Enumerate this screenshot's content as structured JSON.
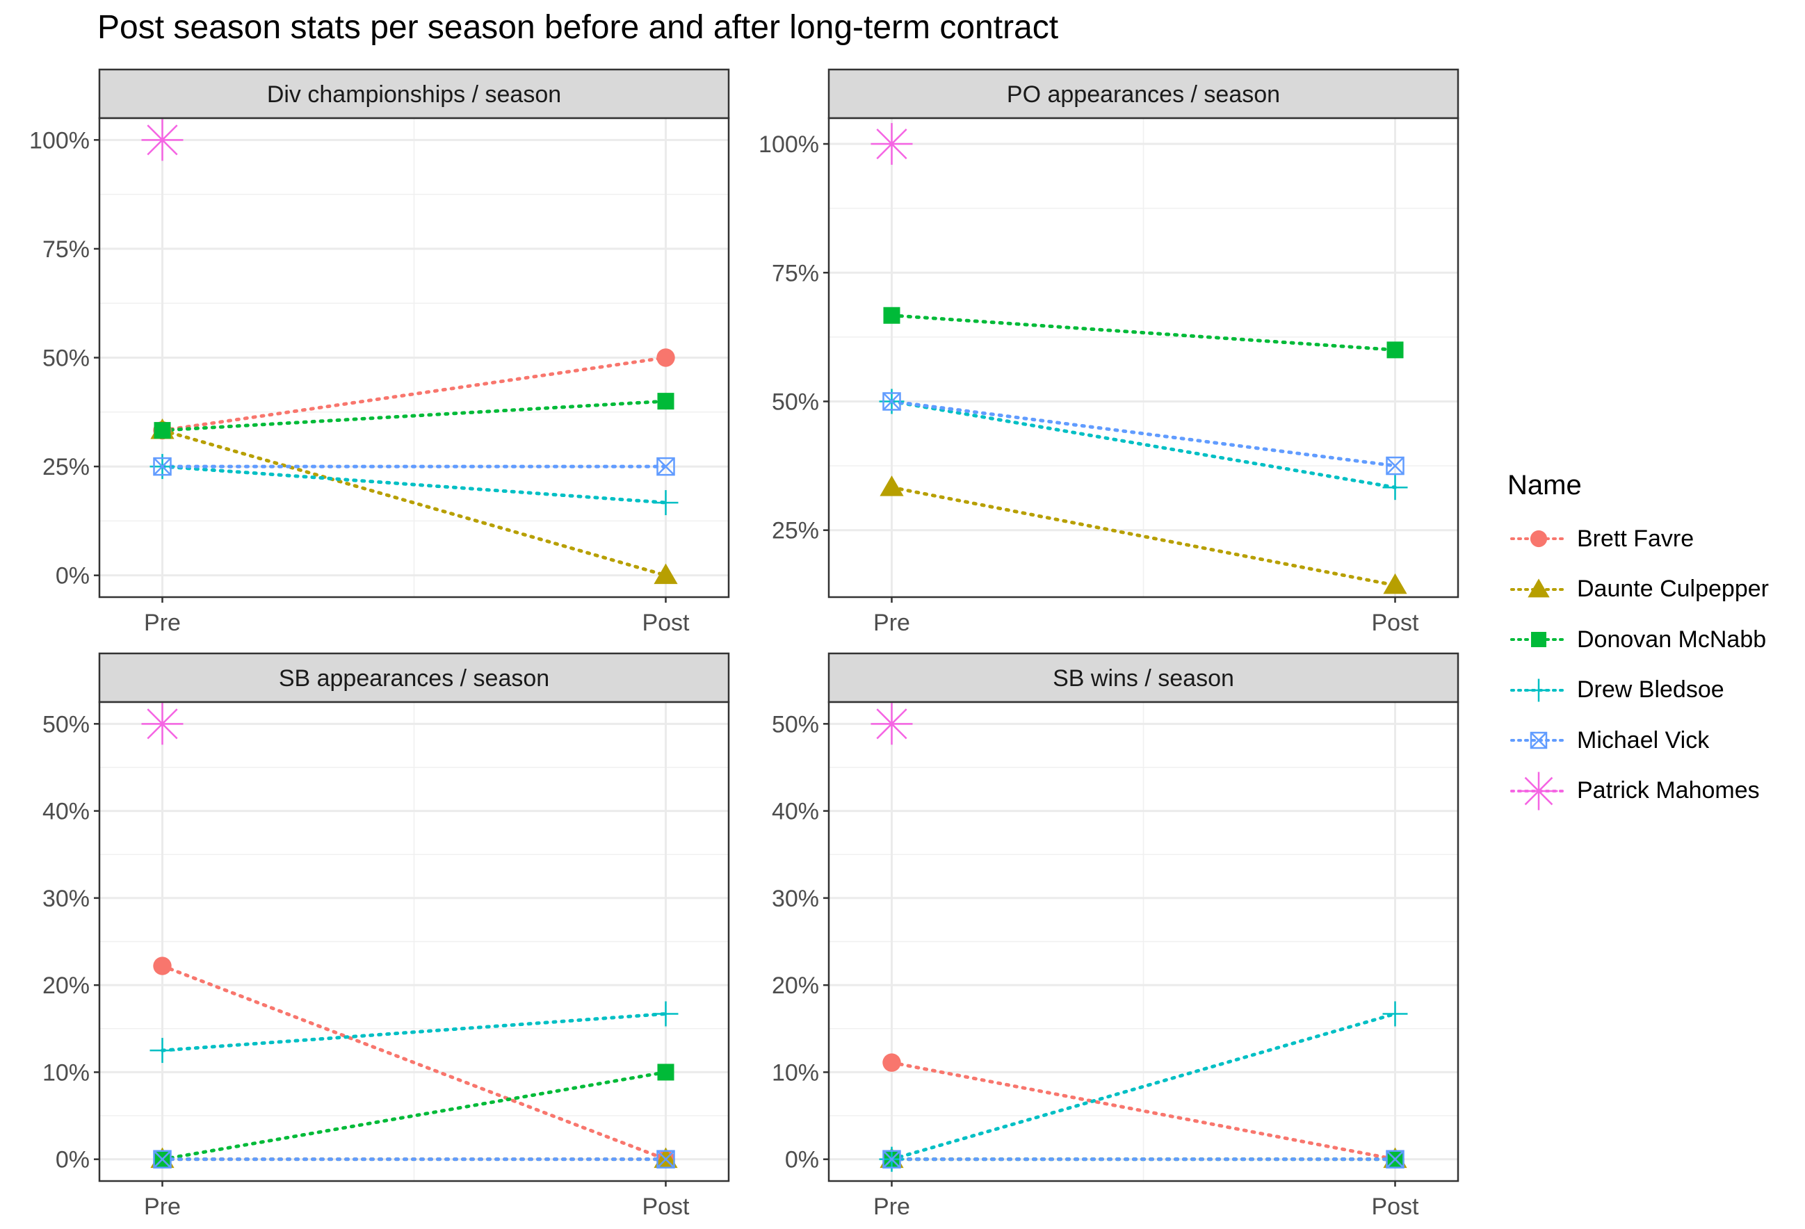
{
  "chart_data": {
    "title": "Post season stats per season before and after long-term contract",
    "type": "line",
    "x_categories": [
      "Pre",
      "Post"
    ],
    "legend": {
      "title": "Name",
      "position": "right",
      "entries": [
        {
          "name": "Brett Favre",
          "color": "#F8766D",
          "shape": "circle"
        },
        {
          "name": "Daunte Culpepper",
          "color": "#B79F00",
          "shape": "triangle"
        },
        {
          "name": "Donovan McNabb",
          "color": "#00BA38",
          "shape": "square"
        },
        {
          "name": "Drew Bledsoe",
          "color": "#00BFC4",
          "shape": "plus"
        },
        {
          "name": "Michael Vick",
          "color": "#619CFF",
          "shape": "square-cross"
        },
        {
          "name": "Patrick Mahomes",
          "color": "#F564E3",
          "shape": "asterisk"
        }
      ]
    },
    "panels": [
      {
        "title": "Div championships / season",
        "ylim": [
          -0.05,
          1.05
        ],
        "yticks": [
          0,
          0.25,
          0.5,
          0.75,
          1.0
        ],
        "ytick_labels": [
          "0%",
          "25%",
          "50%",
          "75%",
          "100%"
        ],
        "series": [
          {
            "name": "Brett Favre",
            "values": [
              0.333,
              0.5
            ]
          },
          {
            "name": "Daunte Culpepper",
            "values": [
              0.333,
              0.0
            ]
          },
          {
            "name": "Donovan McNabb",
            "values": [
              0.333,
              0.4
            ]
          },
          {
            "name": "Drew Bledsoe",
            "values": [
              0.25,
              0.167
            ]
          },
          {
            "name": "Michael Vick",
            "values": [
              0.25,
              0.25
            ]
          },
          {
            "name": "Patrick Mahomes",
            "values": [
              1.0,
              null
            ]
          }
        ]
      },
      {
        "title": "PO appearances / season",
        "ylim": [
          0.12,
          1.05
        ],
        "yticks": [
          0.25,
          0.5,
          0.75,
          1.0
        ],
        "ytick_labels": [
          "25%",
          "50%",
          "75%",
          "100%"
        ],
        "series": [
          {
            "name": "Brett Favre",
            "values": [
              null,
              null
            ]
          },
          {
            "name": "Daunte Culpepper",
            "values": [
              0.333,
              0.143
            ]
          },
          {
            "name": "Donovan McNabb",
            "values": [
              0.667,
              0.6
            ]
          },
          {
            "name": "Drew Bledsoe",
            "values": [
              0.5,
              0.333
            ]
          },
          {
            "name": "Michael Vick",
            "values": [
              0.5,
              0.375
            ]
          },
          {
            "name": "Patrick Mahomes",
            "values": [
              1.0,
              null
            ]
          }
        ]
      },
      {
        "title": "SB appearances / season",
        "ylim": [
          -0.025,
          0.525
        ],
        "yticks": [
          0,
          0.1,
          0.2,
          0.3,
          0.4,
          0.5
        ],
        "ytick_labels": [
          "0%",
          "10%",
          "20%",
          "30%",
          "40%",
          "50%"
        ],
        "series": [
          {
            "name": "Brett Favre",
            "values": [
              0.222,
              0.0
            ]
          },
          {
            "name": "Daunte Culpepper",
            "values": [
              0.0,
              0.0
            ]
          },
          {
            "name": "Donovan McNabb",
            "values": [
              0.0,
              0.1
            ]
          },
          {
            "name": "Drew Bledsoe",
            "values": [
              0.125,
              0.167
            ]
          },
          {
            "name": "Michael Vick",
            "values": [
              0.0,
              0.0
            ]
          },
          {
            "name": "Patrick Mahomes",
            "values": [
              0.5,
              null
            ]
          }
        ]
      },
      {
        "title": "SB wins / season",
        "ylim": [
          -0.025,
          0.525
        ],
        "yticks": [
          0,
          0.1,
          0.2,
          0.3,
          0.4,
          0.5
        ],
        "ytick_labels": [
          "0%",
          "10%",
          "20%",
          "30%",
          "40%",
          "50%"
        ],
        "series": [
          {
            "name": "Brett Favre",
            "values": [
              0.111,
              0.0
            ]
          },
          {
            "name": "Daunte Culpepper",
            "values": [
              0.0,
              0.0
            ]
          },
          {
            "name": "Donovan McNabb",
            "values": [
              0.0,
              0.0
            ]
          },
          {
            "name": "Drew Bledsoe",
            "values": [
              0.0,
              0.167
            ]
          },
          {
            "name": "Michael Vick",
            "values": [
              0.0,
              0.0
            ]
          },
          {
            "name": "Patrick Mahomes",
            "values": [
              0.5,
              null
            ]
          }
        ]
      }
    ],
    "grid": true,
    "line_style": "dotted"
  }
}
